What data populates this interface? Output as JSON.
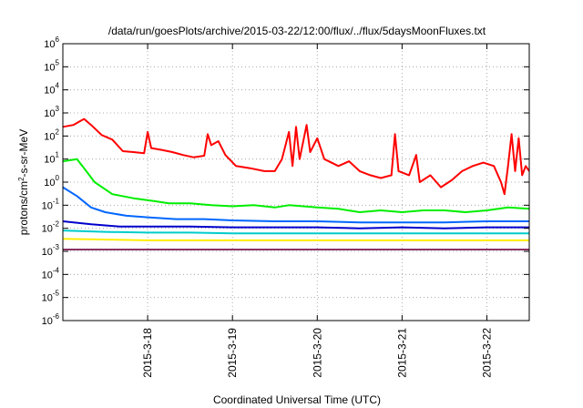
{
  "chart_data": {
    "type": "line",
    "title": "/data/run/goesPlots/archive/2015-03-22/12:00/flux/../flux/5daysMoonFluxes.txt",
    "xlabel": "Coordinated Universal Time (UTC)",
    "ylabel_parts": [
      "protons/cm",
      "2",
      "-s-sr-MeV"
    ],
    "x_domain": [
      "2015-03-17T00:00Z",
      "2015-03-22T12:00Z"
    ],
    "x_ticks": [
      {
        "date": "2015-03-18",
        "label": "2015-3-18"
      },
      {
        "date": "2015-03-19",
        "label": "2015-3-19"
      },
      {
        "date": "2015-03-20",
        "label": "2015-3-20"
      },
      {
        "date": "2015-03-21",
        "label": "2015-3-21"
      },
      {
        "date": "2015-03-22",
        "label": "2015-3-22"
      }
    ],
    "y_scale": "log",
    "ylim": [
      1e-06,
      1000000.0
    ],
    "y_tick_exponents": [
      -6,
      -5,
      -4,
      -3,
      -2,
      -1,
      0,
      1,
      2,
      3,
      4,
      5,
      6
    ],
    "grid": true,
    "series": [
      {
        "color": "#ff0000",
        "points": [
          [
            "2015-03-17T00:00Z",
            250
          ],
          [
            "2015-03-17T03:00Z",
            300
          ],
          [
            "2015-03-17T05:00Z",
            450
          ],
          [
            "2015-03-17T06:00Z",
            550
          ],
          [
            "2015-03-17T08:00Z",
            300
          ],
          [
            "2015-03-17T11:00Z",
            110
          ],
          [
            "2015-03-17T14:00Z",
            70
          ],
          [
            "2015-03-17T17:00Z",
            22
          ],
          [
            "2015-03-17T20:00Z",
            20
          ],
          [
            "2015-03-17T23:00Z",
            18
          ],
          [
            "2015-03-18T00:00Z",
            150
          ],
          [
            "2015-03-18T01:00Z",
            30
          ],
          [
            "2015-03-18T04:00Z",
            25
          ],
          [
            "2015-03-18T07:00Z",
            20
          ],
          [
            "2015-03-18T10:00Z",
            15
          ],
          [
            "2015-03-18T13:00Z",
            12
          ],
          [
            "2015-03-18T16:00Z",
            14
          ],
          [
            "2015-03-18T17:00Z",
            120
          ],
          [
            "2015-03-18T18:00Z",
            40
          ],
          [
            "2015-03-18T20:00Z",
            60
          ],
          [
            "2015-03-18T22:00Z",
            15
          ],
          [
            "2015-03-19T01:00Z",
            5
          ],
          [
            "2015-03-19T05:00Z",
            4
          ],
          [
            "2015-03-19T09:00Z",
            3
          ],
          [
            "2015-03-19T12:00Z",
            3
          ],
          [
            "2015-03-19T14:00Z",
            10
          ],
          [
            "2015-03-19T16:00Z",
            150
          ],
          [
            "2015-03-19T17:00Z",
            5
          ],
          [
            "2015-03-19T18:00Z",
            250
          ],
          [
            "2015-03-19T19:00Z",
            10
          ],
          [
            "2015-03-19T21:00Z",
            300
          ],
          [
            "2015-03-19T22:00Z",
            20
          ],
          [
            "2015-03-20T00:00Z",
            80
          ],
          [
            "2015-03-20T02:00Z",
            10
          ],
          [
            "2015-03-20T06:00Z",
            5
          ],
          [
            "2015-03-20T09:00Z",
            8
          ],
          [
            "2015-03-20T12:00Z",
            3
          ],
          [
            "2015-03-20T15:00Z",
            2
          ],
          [
            "2015-03-20T18:00Z",
            1.5
          ],
          [
            "2015-03-20T21:00Z",
            2
          ],
          [
            "2015-03-20T22:00Z",
            120
          ],
          [
            "2015-03-20T23:00Z",
            3
          ],
          [
            "2015-03-21T02:00Z",
            2
          ],
          [
            "2015-03-21T04:00Z",
            15
          ],
          [
            "2015-03-21T05:00Z",
            1
          ],
          [
            "2015-03-21T08:00Z",
            2
          ],
          [
            "2015-03-21T11:00Z",
            0.6
          ],
          [
            "2015-03-21T14:00Z",
            1.2
          ],
          [
            "2015-03-21T17:00Z",
            3
          ],
          [
            "2015-03-21T20:00Z",
            5
          ],
          [
            "2015-03-21T23:00Z",
            7
          ],
          [
            "2015-03-22T02:00Z",
            5
          ],
          [
            "2015-03-22T04:00Z",
            1
          ],
          [
            "2015-03-22T05:00Z",
            0.3
          ],
          [
            "2015-03-22T06:00Z",
            5
          ],
          [
            "2015-03-22T07:00Z",
            120
          ],
          [
            "2015-03-22T08:00Z",
            3
          ],
          [
            "2015-03-22T09:00Z",
            80
          ],
          [
            "2015-03-22T10:00Z",
            2
          ],
          [
            "2015-03-22T11:00Z",
            5
          ],
          [
            "2015-03-22T12:00Z",
            3
          ]
        ]
      },
      {
        "color": "#00ee00",
        "points": [
          [
            "2015-03-17T00:00Z",
            8
          ],
          [
            "2015-03-17T04:00Z",
            10
          ],
          [
            "2015-03-17T06:00Z",
            4
          ],
          [
            "2015-03-17T09:00Z",
            1
          ],
          [
            "2015-03-17T14:00Z",
            0.3
          ],
          [
            "2015-03-17T20:00Z",
            0.2
          ],
          [
            "2015-03-18T02:00Z",
            0.15
          ],
          [
            "2015-03-18T06:00Z",
            0.12
          ],
          [
            "2015-03-18T12:00Z",
            0.12
          ],
          [
            "2015-03-18T18:00Z",
            0.1
          ],
          [
            "2015-03-19T00:00Z",
            0.09
          ],
          [
            "2015-03-19T06:00Z",
            0.1
          ],
          [
            "2015-03-19T12:00Z",
            0.08
          ],
          [
            "2015-03-19T16:00Z",
            0.1
          ],
          [
            "2015-03-20T00:00Z",
            0.08
          ],
          [
            "2015-03-20T06:00Z",
            0.07
          ],
          [
            "2015-03-20T12:00Z",
            0.05
          ],
          [
            "2015-03-20T18:00Z",
            0.06
          ],
          [
            "2015-03-21T00:00Z",
            0.05
          ],
          [
            "2015-03-21T06:00Z",
            0.06
          ],
          [
            "2015-03-21T12:00Z",
            0.06
          ],
          [
            "2015-03-21T18:00Z",
            0.05
          ],
          [
            "2015-03-22T00:00Z",
            0.06
          ],
          [
            "2015-03-22T06:00Z",
            0.08
          ],
          [
            "2015-03-22T12:00Z",
            0.07
          ]
        ]
      },
      {
        "color": "#0066ff",
        "points": [
          [
            "2015-03-17T00:00Z",
            0.6
          ],
          [
            "2015-03-17T04:00Z",
            0.25
          ],
          [
            "2015-03-17T08:00Z",
            0.08
          ],
          [
            "2015-03-17T12:00Z",
            0.05
          ],
          [
            "2015-03-17T18:00Z",
            0.035
          ],
          [
            "2015-03-18T00:00Z",
            0.03
          ],
          [
            "2015-03-18T08:00Z",
            0.025
          ],
          [
            "2015-03-18T16:00Z",
            0.025
          ],
          [
            "2015-03-19T00:00Z",
            0.022
          ],
          [
            "2015-03-19T12:00Z",
            0.02
          ],
          [
            "2015-03-20T00:00Z",
            0.02
          ],
          [
            "2015-03-20T12:00Z",
            0.018
          ],
          [
            "2015-03-21T00:00Z",
            0.018
          ],
          [
            "2015-03-21T12:00Z",
            0.018
          ],
          [
            "2015-03-22T00:00Z",
            0.02
          ],
          [
            "2015-03-22T12:00Z",
            0.02
          ]
        ]
      },
      {
        "color": "#0000cc",
        "points": [
          [
            "2015-03-17T00:00Z",
            0.02
          ],
          [
            "2015-03-17T08:00Z",
            0.015
          ],
          [
            "2015-03-17T16:00Z",
            0.012
          ],
          [
            "2015-03-18T00:00Z",
            0.012
          ],
          [
            "2015-03-18T12:00Z",
            0.012
          ],
          [
            "2015-03-19T00:00Z",
            0.011
          ],
          [
            "2015-03-19T12:00Z",
            0.011
          ],
          [
            "2015-03-20T00:00Z",
            0.011
          ],
          [
            "2015-03-20T12:00Z",
            0.01
          ],
          [
            "2015-03-21T00:00Z",
            0.011
          ],
          [
            "2015-03-21T12:00Z",
            0.01
          ],
          [
            "2015-03-22T00:00Z",
            0.011
          ],
          [
            "2015-03-22T12:00Z",
            0.011
          ]
        ]
      },
      {
        "color": "#00cccc",
        "points": [
          [
            "2015-03-17T00:00Z",
            0.008
          ],
          [
            "2015-03-17T12:00Z",
            0.007
          ],
          [
            "2015-03-18T00:00Z",
            0.0065
          ],
          [
            "2015-03-18T12:00Z",
            0.0065
          ],
          [
            "2015-03-19T00:00Z",
            0.006
          ],
          [
            "2015-03-19T12:00Z",
            0.006
          ],
          [
            "2015-03-20T00:00Z",
            0.006
          ],
          [
            "2015-03-20T12:00Z",
            0.006
          ],
          [
            "2015-03-21T00:00Z",
            0.006
          ],
          [
            "2015-03-21T12:00Z",
            0.006
          ],
          [
            "2015-03-22T00:00Z",
            0.006
          ],
          [
            "2015-03-22T12:00Z",
            0.006
          ]
        ]
      },
      {
        "color": "#ffee00",
        "points": [
          [
            "2015-03-17T00:00Z",
            0.0035
          ],
          [
            "2015-03-18T00:00Z",
            0.003
          ],
          [
            "2015-03-19T00:00Z",
            0.003
          ],
          [
            "2015-03-20T00:00Z",
            0.003
          ],
          [
            "2015-03-21T00:00Z",
            0.003
          ],
          [
            "2015-03-22T00:00Z",
            0.003
          ],
          [
            "2015-03-22T12:00Z",
            0.003
          ]
        ]
      },
      {
        "color": "#883366",
        "points": [
          [
            "2015-03-17T00:00Z",
            0.0012
          ],
          [
            "2015-03-18T00:00Z",
            0.0012
          ],
          [
            "2015-03-19T00:00Z",
            0.0012
          ],
          [
            "2015-03-20T00:00Z",
            0.0012
          ],
          [
            "2015-03-21T00:00Z",
            0.0012
          ],
          [
            "2015-03-22T00:00Z",
            0.0012
          ],
          [
            "2015-03-22T12:00Z",
            0.0012
          ]
        ]
      }
    ]
  }
}
